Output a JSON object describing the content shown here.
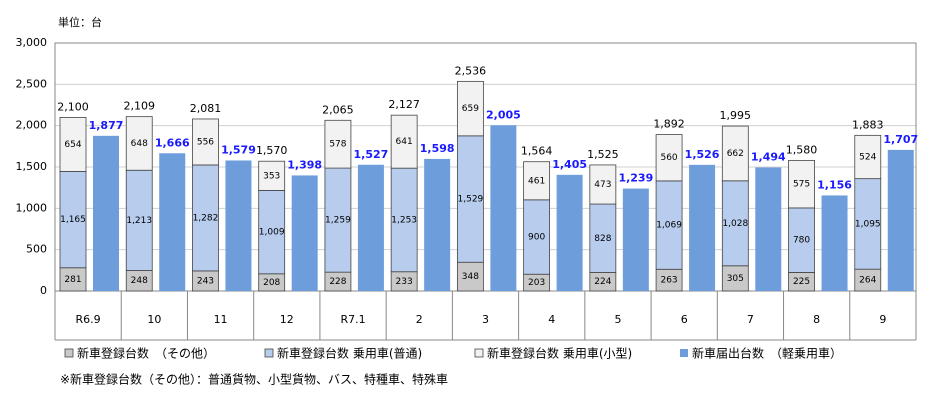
{
  "chart_data": {
    "type": "bar",
    "unit_label": "単位：台",
    "categories": [
      "R6.9",
      "10",
      "11",
      "12",
      "R7.1",
      "2",
      "3",
      "4",
      "5",
      "6",
      "7",
      "8",
      "9"
    ],
    "series": [
      {
        "name": "新車登録台数　（その他）",
        "color": "#c9c9c9",
        "stack": "registered",
        "values": [
          281,
          248,
          243,
          208,
          228,
          233,
          348,
          203,
          224,
          263,
          305,
          225,
          264
        ]
      },
      {
        "name": "新車登録台数 乗用車(普通)",
        "color": "#b8cdee",
        "stack": "registered",
        "values": [
          1165,
          1213,
          1282,
          1009,
          1259,
          1253,
          1529,
          900,
          828,
          1069,
          1028,
          780,
          1095
        ],
        "value_labels": [
          "1,165",
          "1,213",
          "1,282",
          "1,009",
          "1,259",
          "1,253",
          "1,529",
          "900",
          "828",
          "1,069",
          "1,028",
          "780",
          "1,095"
        ]
      },
      {
        "name": "新車登録台数 乗用車(小型)",
        "color": "#f2f2f2",
        "stack": "registered",
        "values": [
          654,
          648,
          556,
          353,
          578,
          641,
          659,
          461,
          473,
          560,
          662,
          575,
          524
        ]
      },
      {
        "name": "新車届出台数　（軽乗用車）",
        "color": "#6d9edb",
        "stack": "notified",
        "values": [
          1877,
          1666,
          1579,
          1398,
          1527,
          1598,
          2005,
          1405,
          1239,
          1526,
          1494,
          1156,
          1707
        ],
        "value_labels": [
          "1,877",
          "1,666",
          "1,579",
          "1,398",
          "1,527",
          "1,598",
          "2,005",
          "1,405",
          "1,239",
          "1,526",
          "1,494",
          "1,156",
          "1,707"
        ]
      }
    ],
    "totals": [
      2100,
      2109,
      2081,
      1570,
      2065,
      2127,
      2536,
      1564,
      1525,
      1892,
      1995,
      1580,
      1883
    ],
    "total_labels": [
      "2,100",
      "2,109",
      "2,081",
      "1,570",
      "2,065",
      "2,127",
      "2,536",
      "1,564",
      "1,525",
      "1,892",
      "1,995",
      "1,580",
      "1,883"
    ],
    "ylim": [
      0,
      3000
    ],
    "yticks": [
      0,
      500,
      {
        "value": 1000,
        "label": "1,000"
      },
      {
        "value": 1500,
        "label": "1,500"
      },
      {
        "value": 2000,
        "label": "2,000"
      },
      {
        "value": 2500,
        "label": "2,500"
      },
      {
        "value": 3000,
        "label": "3,000"
      }
    ],
    "grid": true,
    "footnote": "※新車登録台数（その他）：普通貨物、小型貨物、バス、特種車、特殊車"
  }
}
